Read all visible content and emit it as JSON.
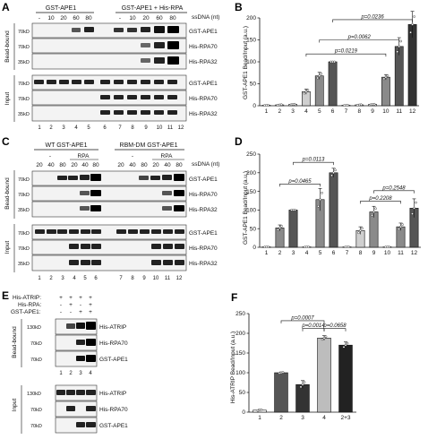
{
  "panels": {
    "A": {
      "label": "A",
      "header_left": "GST-APE1",
      "header_right": "GST-APE1 + His-RPA",
      "ssdna_label": "ssDNA (nt)",
      "ssdna_left": [
        "-",
        "10",
        "20",
        "60",
        "80"
      ],
      "ssdna_right": [
        "-",
        "10",
        "20",
        "60",
        "80"
      ],
      "side_top": "Bead-bound",
      "side_bottom": "Input",
      "rows_top": [
        {
          "mw": "70kD",
          "label": "GST-APE1"
        },
        {
          "mw": "70kD",
          "label": "His-RPA70"
        },
        {
          "mw": "35kD",
          "label": "His-RPA32"
        }
      ],
      "rows_bottom": [
        {
          "mw": "70kD",
          "label": "GST-APE1"
        },
        {
          "mw": "70kD",
          "label": "His-RPA70"
        },
        {
          "mw": "35kD",
          "label": "His-RPA32"
        }
      ],
      "lanes": [
        "1",
        "2",
        "3",
        "4",
        "5",
        "6",
        "7",
        "8",
        "9",
        "10",
        "11",
        "12"
      ]
    },
    "B": {
      "label": "B",
      "ylabel": "GST-APE1 Bead/Input (a.u.)",
      "p_values": [
        "p=0.0236",
        "p=0.0062",
        "p=0.0219"
      ]
    },
    "C": {
      "label": "C",
      "header_left": "WT GST-APE1",
      "header_right": "RBM-DM GST-APE1",
      "dash_left": "-",
      "rpa_left": "RPA",
      "dash_right": "-",
      "rpa_right": "RPA",
      "ssdna_label": "ssDNA (nt)",
      "ssdna_vals": [
        "20",
        "40",
        "80",
        "20",
        "40",
        "80",
        "20",
        "40",
        "80",
        "20",
        "40",
        "80"
      ],
      "side_top": "Bead-bound",
      "side_bottom": "Input",
      "rows_top": [
        {
          "mw": "70kD",
          "label": "GST-APE1"
        },
        {
          "mw": "70kD",
          "label": "His-RPA70"
        },
        {
          "mw": "35kD",
          "label": "His-RPA32"
        }
      ],
      "rows_bottom": [
        {
          "mw": "70kD",
          "label": "GST-APE1"
        },
        {
          "mw": "70kD",
          "label": "His-RPA70"
        },
        {
          "mw": "35kD",
          "label": "His-RPA32"
        }
      ],
      "lanes": [
        "1",
        "2",
        "3",
        "4",
        "5",
        "6",
        "7",
        "8",
        "9",
        "10",
        "11",
        "12"
      ]
    },
    "D": {
      "label": "D",
      "ylabel": "GST-APE1 Bead/Input (a.u.)",
      "p_values": [
        "p=0.0113",
        "p=0.0465",
        "p=0.2208",
        "p=0.2548"
      ]
    },
    "E": {
      "label": "E",
      "cond_rows": [
        {
          "name": "His-ATRIP:",
          "vals": [
            "+",
            "+",
            "+",
            "+"
          ]
        },
        {
          "name": "His-RPA:",
          "vals": [
            "-",
            "+",
            "-",
            "+"
          ]
        },
        {
          "name": "GST-APE1:",
          "vals": [
            "-",
            "-",
            "+",
            "+"
          ]
        }
      ],
      "side_top": "Bead-bound",
      "side_bottom": "Input",
      "rows_top": [
        {
          "mw": "130kD",
          "label": "His-ATRIP"
        },
        {
          "mw": "70kD",
          "label": "His-RPA70"
        },
        {
          "mw": "70kD",
          "label": "GST-APE1"
        }
      ],
      "rows_bottom": [
        {
          "mw": "130kD",
          "label": "His-ATRIP"
        },
        {
          "mw": "70kD",
          "label": "His-RPA70"
        },
        {
          "mw": "70kD",
          "label": "GST-APE1"
        }
      ],
      "lanes": [
        "1",
        "2",
        "3",
        "4"
      ]
    },
    "F": {
      "label": "F",
      "ylabel": "His-ATRIP Bead/Input (a.u.)",
      "p_values": [
        "p=0.0007",
        "p=0.0014",
        "p=0.0658"
      ]
    }
  },
  "chart_data": [
    {
      "type": "bar",
      "panel": "B",
      "categories": [
        "1",
        "2",
        "3",
        "4",
        "5",
        "6",
        "7",
        "8",
        "9",
        "10",
        "11",
        "12"
      ],
      "values": [
        1,
        2,
        3,
        32,
        68,
        100,
        1,
        2,
        3,
        65,
        135,
        185
      ],
      "errors": [
        0.5,
        1,
        1,
        6,
        8,
        0,
        0.5,
        1,
        1,
        6,
        20,
        30
      ],
      "colors": [
        "#ffffff",
        "#ffffff",
        "#ffffff",
        "#cfcfcf",
        "#8a8a8a",
        "#555555",
        "#ffffff",
        "#ffffff",
        "#ffffff",
        "#8a8a8a",
        "#555555",
        "#333333"
      ],
      "ylim": [
        0,
        200
      ],
      "yticks": [
        0,
        50,
        100,
        150,
        200
      ],
      "ylabel": "GST-APE1 Bead/Input (a.u.)",
      "brackets": [
        {
          "from": "6",
          "to": "12",
          "text": "p=0.0236"
        },
        {
          "from": "5",
          "to": "11",
          "text": "p=0.0062"
        },
        {
          "from": "4",
          "to": "10",
          "text": "p=0.0219"
        }
      ]
    },
    {
      "type": "bar",
      "panel": "D",
      "categories": [
        "1",
        "2",
        "3",
        "4",
        "5",
        "6",
        "7",
        "8",
        "9",
        "10",
        "11",
        "12"
      ],
      "values": [
        1,
        52,
        100,
        1,
        128,
        200,
        1,
        45,
        95,
        1,
        55,
        105
      ],
      "errors": [
        0.5,
        8,
        0,
        0.5,
        30,
        12,
        0.5,
        10,
        15,
        0.5,
        10,
        25
      ],
      "colors": [
        "#ffffff",
        "#8a8a8a",
        "#555555",
        "#ffffff",
        "#8a8a8a",
        "#555555",
        "#ffffff",
        "#cfcfcf",
        "#8a8a8a",
        "#ffffff",
        "#8a8a8a",
        "#555555"
      ],
      "ylim": [
        0,
        250
      ],
      "yticks": [
        0,
        50,
        100,
        150,
        200,
        250
      ],
      "ylabel": "GST-APE1 Bead/Input (a.u.)",
      "brackets": [
        {
          "from": "3",
          "to": "6",
          "text": "p=0.0113"
        },
        {
          "from": "2",
          "to": "5",
          "text": "p=0.0465"
        },
        {
          "from": "9",
          "to": "12",
          "text": "p=0.2548"
        },
        {
          "from": "8",
          "to": "11",
          "text": "p=0.2208"
        }
      ]
    },
    {
      "type": "bar",
      "panel": "F",
      "categories": [
        "1",
        "2",
        "3",
        "4",
        "2+3"
      ],
      "values": [
        5,
        100,
        70,
        188,
        170
      ],
      "errors": [
        2,
        2,
        10,
        6,
        8
      ],
      "colors": [
        "#ffffff",
        "#555555",
        "#333333",
        "#bdbdbd",
        "#222222"
      ],
      "ylim": [
        0,
        250
      ],
      "yticks": [
        0,
        50,
        100,
        150,
        200,
        250
      ],
      "ylabel": "His-ATRIP Bead/Input (a.u.)",
      "brackets": [
        {
          "from": "2",
          "to": "4",
          "text": "p=0.0007"
        },
        {
          "from": "3",
          "to": "4",
          "text": "p=0.0014"
        },
        {
          "from": "4",
          "to": "2+3",
          "text": "p=0.0658"
        }
      ]
    }
  ]
}
